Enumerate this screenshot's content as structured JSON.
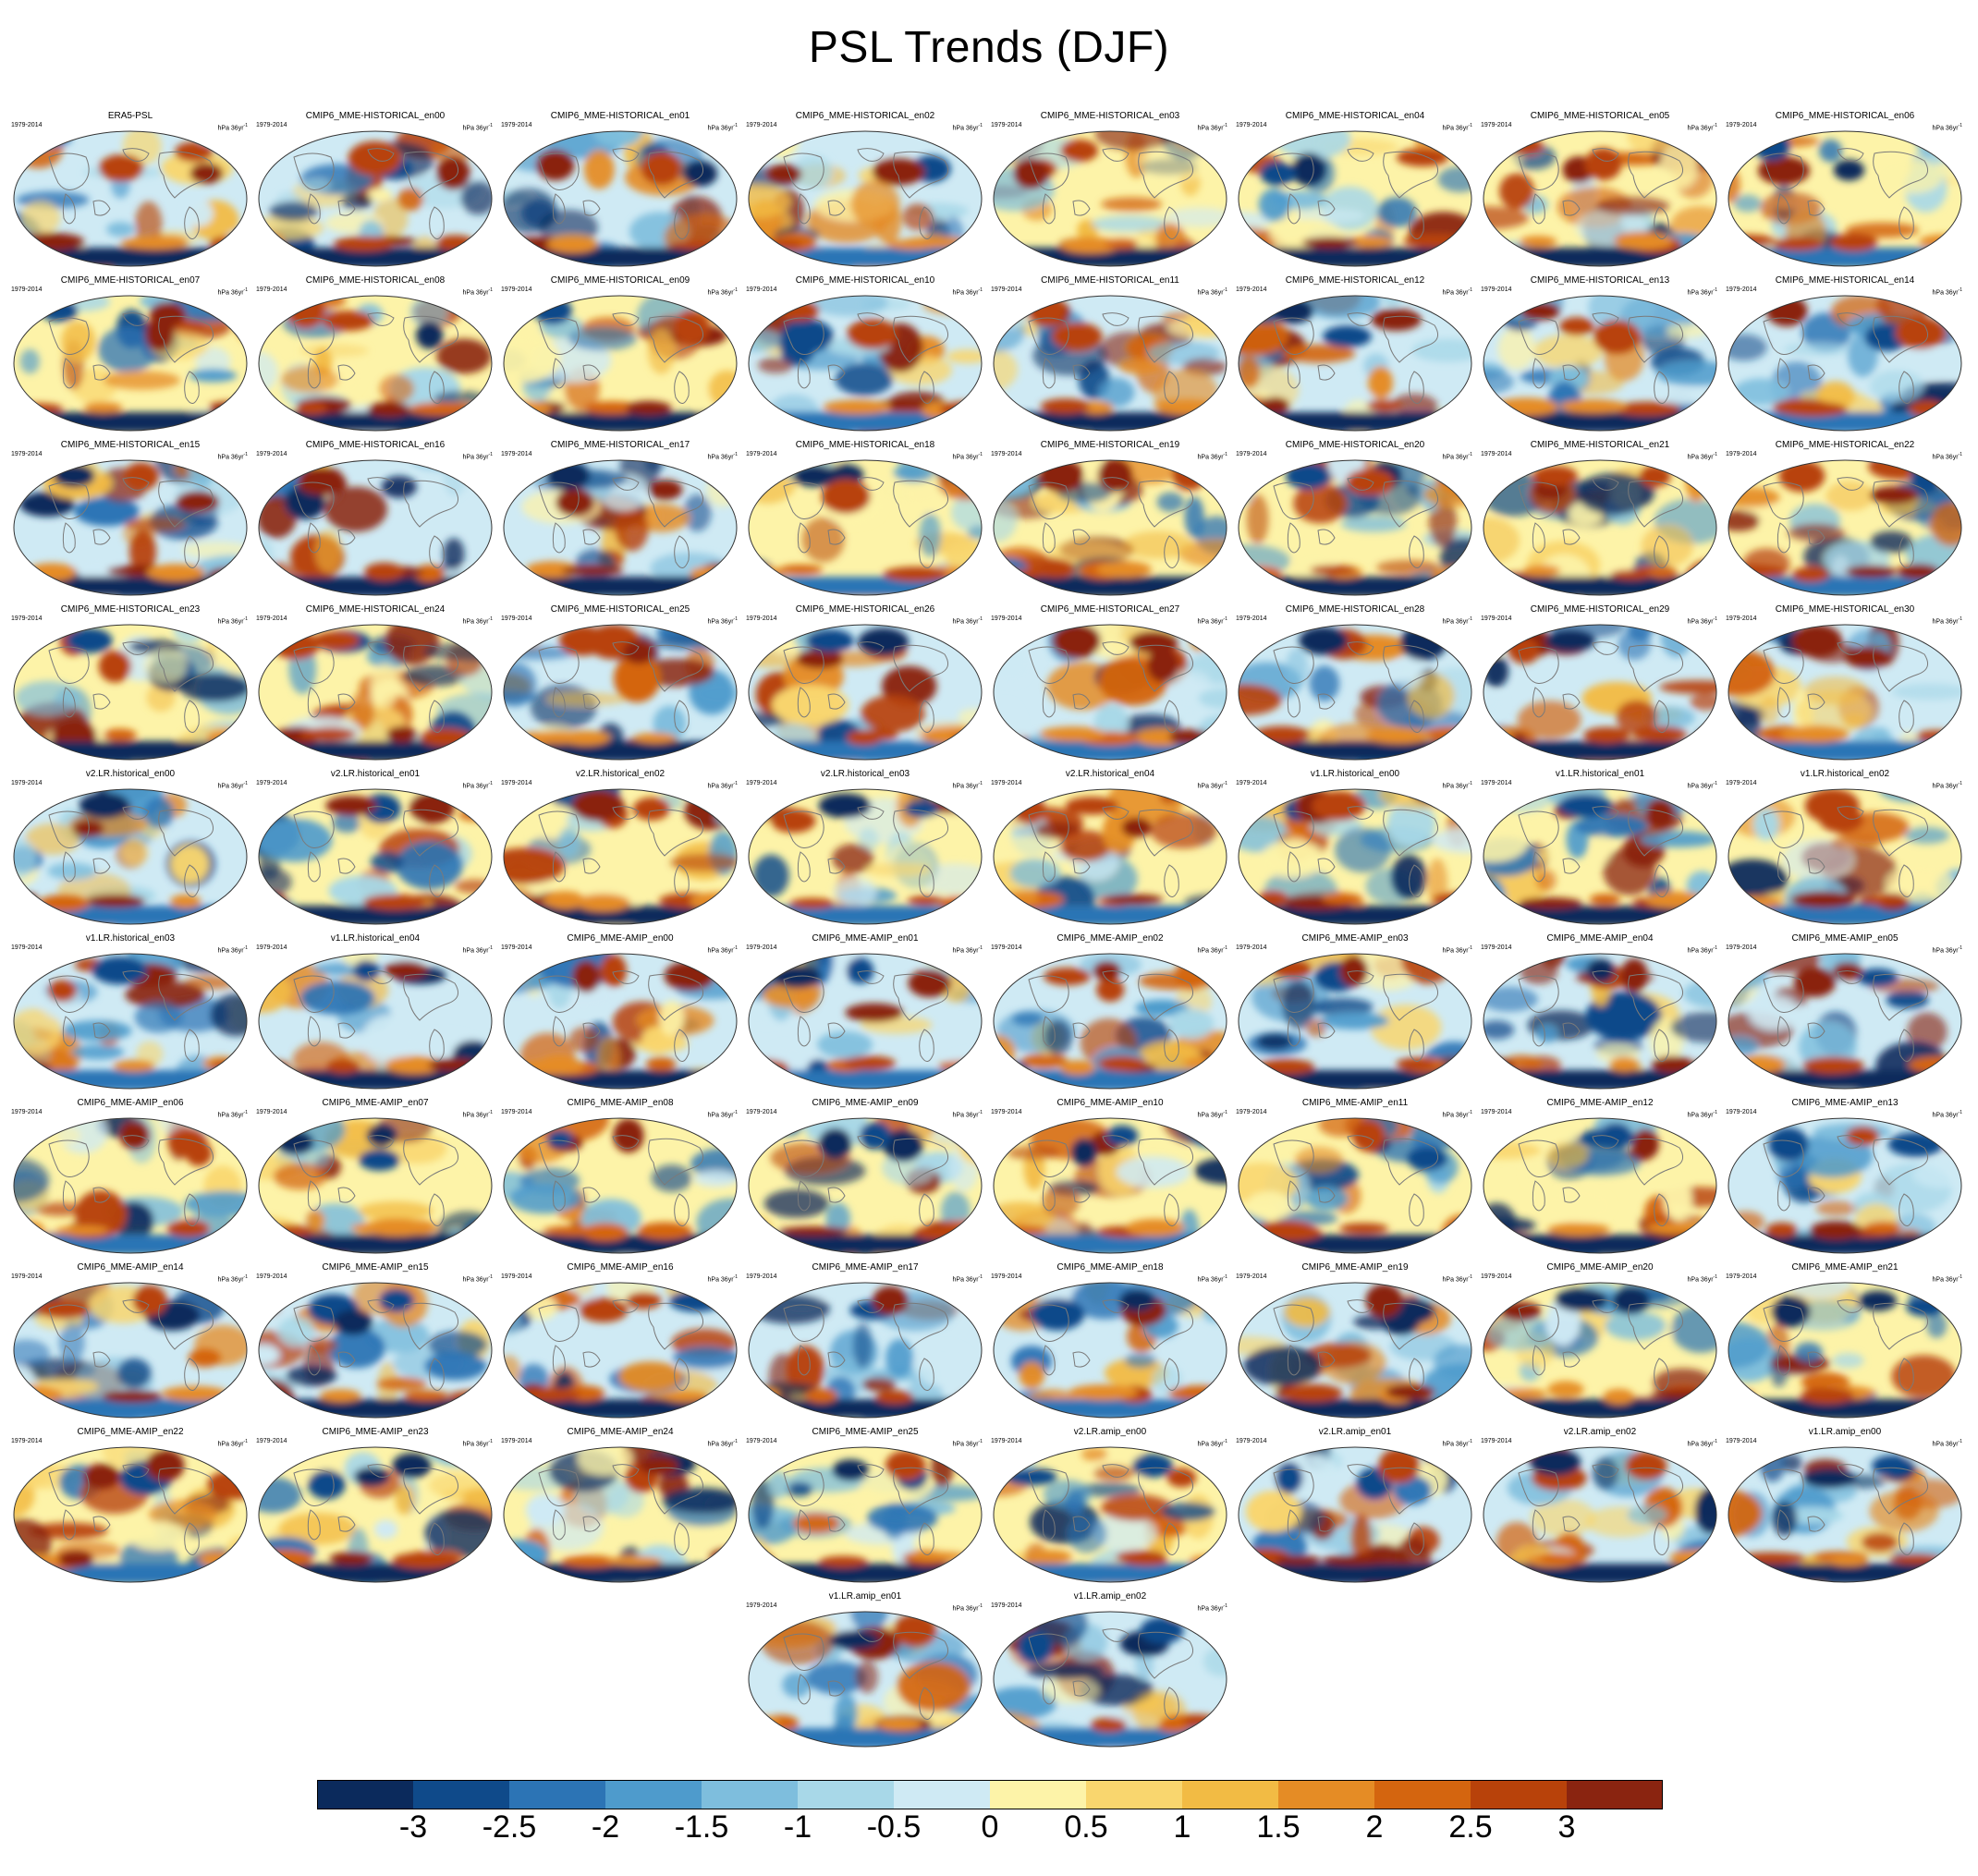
{
  "title": "PSL Trends (DJF)",
  "period_label": "1979-2014",
  "unit_label": {
    "base": "hPa 36yr",
    "exponent": "-1"
  },
  "panels": [
    "ERA5-PSL",
    "CMIP6_MME-HISTORICAL_en00",
    "CMIP6_MME-HISTORICAL_en01",
    "CMIP6_MME-HISTORICAL_en02",
    "CMIP6_MME-HISTORICAL_en03",
    "CMIP6_MME-HISTORICAL_en04",
    "CMIP6_MME-HISTORICAL_en05",
    "CMIP6_MME-HISTORICAL_en06",
    "CMIP6_MME-HISTORICAL_en07",
    "CMIP6_MME-HISTORICAL_en08",
    "CMIP6_MME-HISTORICAL_en09",
    "CMIP6_MME-HISTORICAL_en10",
    "CMIP6_MME-HISTORICAL_en11",
    "CMIP6_MME-HISTORICAL_en12",
    "CMIP6_MME-HISTORICAL_en13",
    "CMIP6_MME-HISTORICAL_en14",
    "CMIP6_MME-HISTORICAL_en15",
    "CMIP6_MME-HISTORICAL_en16",
    "CMIP6_MME-HISTORICAL_en17",
    "CMIP6_MME-HISTORICAL_en18",
    "CMIP6_MME-HISTORICAL_en19",
    "CMIP6_MME-HISTORICAL_en20",
    "CMIP6_MME-HISTORICAL_en21",
    "CMIP6_MME-HISTORICAL_en22",
    "CMIP6_MME-HISTORICAL_en23",
    "CMIP6_MME-HISTORICAL_en24",
    "CMIP6_MME-HISTORICAL_en25",
    "CMIP6_MME-HISTORICAL_en26",
    "CMIP6_MME-HISTORICAL_en27",
    "CMIP6_MME-HISTORICAL_en28",
    "CMIP6_MME-HISTORICAL_en29",
    "CMIP6_MME-HISTORICAL_en30",
    "v2.LR.historical_en00",
    "v2.LR.historical_en01",
    "v2.LR.historical_en02",
    "v2.LR.historical_en03",
    "v2.LR.historical_en04",
    "v1.LR.historical_en00",
    "v1.LR.historical_en01",
    "v1.LR.historical_en02",
    "v1.LR.historical_en03",
    "v1.LR.historical_en04",
    "CMIP6_MME-AMIP_en00",
    "CMIP6_MME-AMIP_en01",
    "CMIP6_MME-AMIP_en02",
    "CMIP6_MME-AMIP_en03",
    "CMIP6_MME-AMIP_en04",
    "CMIP6_MME-AMIP_en05",
    "CMIP6_MME-AMIP_en06",
    "CMIP6_MME-AMIP_en07",
    "CMIP6_MME-AMIP_en08",
    "CMIP6_MME-AMIP_en09",
    "CMIP6_MME-AMIP_en10",
    "CMIP6_MME-AMIP_en11",
    "CMIP6_MME-AMIP_en12",
    "CMIP6_MME-AMIP_en13",
    "CMIP6_MME-AMIP_en14",
    "CMIP6_MME-AMIP_en15",
    "CMIP6_MME-AMIP_en16",
    "CMIP6_MME-AMIP_en17",
    "CMIP6_MME-AMIP_en18",
    "CMIP6_MME-AMIP_en19",
    "CMIP6_MME-AMIP_en20",
    "CMIP6_MME-AMIP_en21",
    "CMIP6_MME-AMIP_en22",
    "CMIP6_MME-AMIP_en23",
    "CMIP6_MME-AMIP_en24",
    "CMIP6_MME-AMIP_en25",
    "v2.LR.amip_en00",
    "v2.LR.amip_en01",
    "v2.LR.amip_en02",
    "v1.LR.amip_en00",
    "v1.LR.amip_en01",
    "v1.LR.amip_en02"
  ],
  "colorbar": {
    "colors": [
      "#0b2a5c",
      "#0f4a8a",
      "#2c74b5",
      "#4e9bcc",
      "#7ebedd",
      "#a8d8e8",
      "#cfeaf4",
      "#fdf3a8",
      "#f9d66e",
      "#f2bb44",
      "#e58c25",
      "#d4650f",
      "#b8420a",
      "#8a2410"
    ],
    "labels": [
      "-3",
      "-2.5",
      "-2",
      "-1.5",
      "-1",
      "-0.5",
      "0",
      "0.5",
      "1",
      "1.5",
      "2",
      "2.5",
      "3"
    ]
  }
}
